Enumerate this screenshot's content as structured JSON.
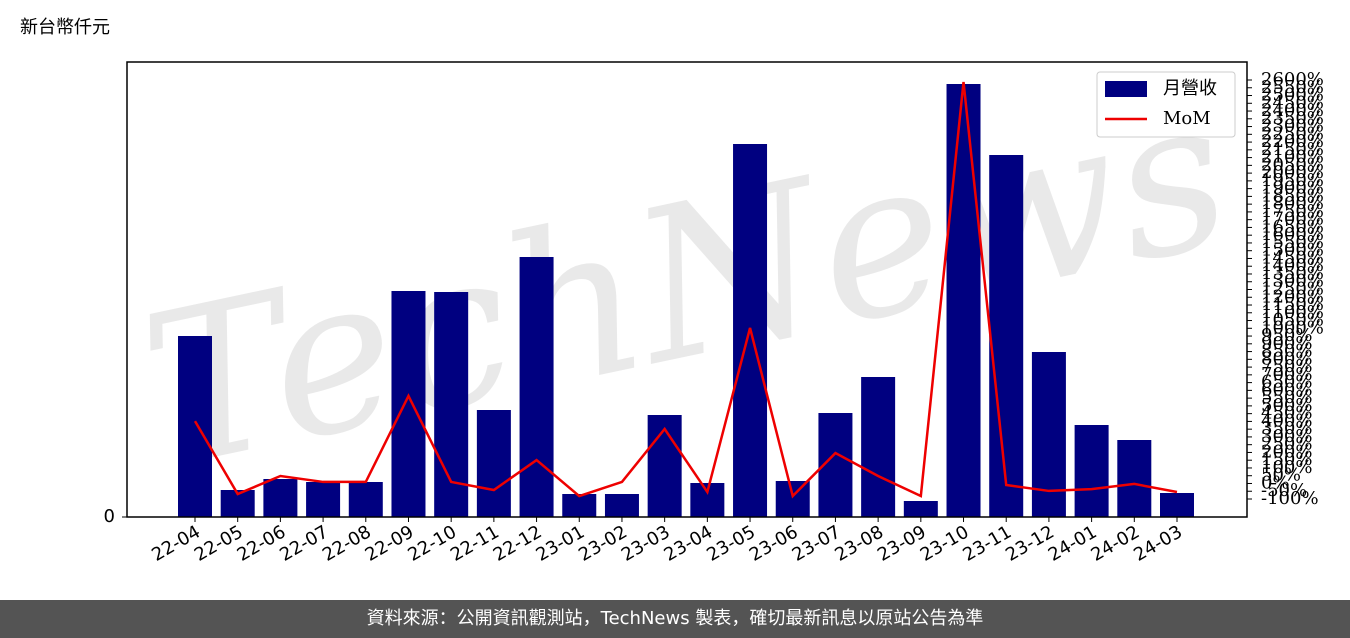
{
  "chart_data": {
    "type": "bar",
    "ylabel": "新台幣仟元",
    "watermark": "TechNews",
    "categories": [
      "22-04",
      "22-05",
      "22-06",
      "22-07",
      "22-08",
      "22-09",
      "22-10",
      "22-11",
      "22-12",
      "23-01",
      "23-02",
      "23-03",
      "23-04",
      "23-05",
      "23-06",
      "23-07",
      "23-08",
      "23-09",
      "23-10",
      "23-11",
      "23-12",
      "24-01",
      "24-02",
      "24-03"
    ],
    "series": [
      {
        "name": "月營收",
        "type": "bar",
        "color": "#000080",
        "values": [
          181,
          27,
          38,
          35,
          35,
          226,
          225,
          107,
          260,
          23,
          23,
          102,
          34,
          373,
          36,
          104,
          140,
          16,
          433,
          362,
          165,
          92,
          77,
          24
        ]
      },
      {
        "name": "MoM",
        "type": "line",
        "axis": "y2",
        "color": "#ee0000",
        "values": [
          402,
          -68,
          48,
          10,
          10,
          564,
          10,
          -42,
          151,
          -81,
          10,
          351,
          -55,
          1002,
          -81,
          196,
          48,
          -81,
          2587,
          -10,
          -48,
          -36,
          -3,
          -55
        ]
      }
    ],
    "ylim": [
      0,
      455
    ],
    "yticks": [
      0
    ],
    "y2lim": [
      -216,
      2716
    ],
    "y2ticks": [
      {
        "value": -100,
        "label": "-100%"
      },
      {
        "value": -50,
        "label": "-50%"
      },
      {
        "value": 0,
        "label": "0%"
      },
      {
        "value": 50,
        "label": "50%"
      },
      {
        "value": 100,
        "label": "100%"
      },
      {
        "value": 150,
        "label": "150%"
      },
      {
        "value": 200,
        "label": "200%"
      },
      {
        "value": 250,
        "label": "250%"
      },
      {
        "value": 300,
        "label": "300%"
      },
      {
        "value": 350,
        "label": "350%"
      },
      {
        "value": 400,
        "label": "400%"
      },
      {
        "value": 450,
        "label": "450%"
      },
      {
        "value": 500,
        "label": "500%"
      },
      {
        "value": 550,
        "label": "550%"
      },
      {
        "value": 600,
        "label": "600%"
      },
      {
        "value": 650,
        "label": "650%"
      },
      {
        "value": 700,
        "label": "700%"
      },
      {
        "value": 750,
        "label": "750%"
      },
      {
        "value": 800,
        "label": "800%"
      },
      {
        "value": 850,
        "label": "850%"
      },
      {
        "value": 900,
        "label": "900%"
      },
      {
        "value": 950,
        "label": "950%"
      },
      {
        "value": 1000,
        "label": "1000%"
      },
      {
        "value": 1050,
        "label": "1050%"
      },
      {
        "value": 1100,
        "label": "1100%"
      },
      {
        "value": 1150,
        "label": "1150%"
      },
      {
        "value": 1200,
        "label": "1200%"
      },
      {
        "value": 1250,
        "label": "1250%"
      },
      {
        "value": 1300,
        "label": "1300%"
      },
      {
        "value": 1350,
        "label": "1350%"
      },
      {
        "value": 1400,
        "label": "1400%"
      },
      {
        "value": 1450,
        "label": "1450%"
      },
      {
        "value": 1500,
        "label": "1500%"
      },
      {
        "value": 1550,
        "label": "1550%"
      },
      {
        "value": 1600,
        "label": "1600%"
      },
      {
        "value": 1650,
        "label": "1650%"
      },
      {
        "value": 1700,
        "label": "1700%"
      },
      {
        "value": 1750,
        "label": "1750%"
      },
      {
        "value": 1800,
        "label": "1800%"
      },
      {
        "value": 1850,
        "label": "1850%"
      },
      {
        "value": 1900,
        "label": "1900%"
      },
      {
        "value": 1950,
        "label": "1950%"
      },
      {
        "value": 2000,
        "label": "2000%"
      },
      {
        "value": 2050,
        "label": "2050%"
      },
      {
        "value": 2100,
        "label": "2100%"
      },
      {
        "value": 2150,
        "label": "2150%"
      },
      {
        "value": 2200,
        "label": "2200%"
      },
      {
        "value": 2250,
        "label": "2250%"
      },
      {
        "value": 2300,
        "label": "2300%"
      },
      {
        "value": 2350,
        "label": "2350%"
      },
      {
        "value": 2400,
        "label": "2400%"
      },
      {
        "value": 2450,
        "label": "2450%"
      },
      {
        "value": 2500,
        "label": "2500%"
      },
      {
        "value": 2550,
        "label": "2550%"
      },
      {
        "value": 2600,
        "label": "2600%"
      }
    ],
    "legend": "upper right"
  },
  "footer": "資料來源：公開資訊觀測站，TechNews 製表，確切最新訊息以原站公告為準"
}
